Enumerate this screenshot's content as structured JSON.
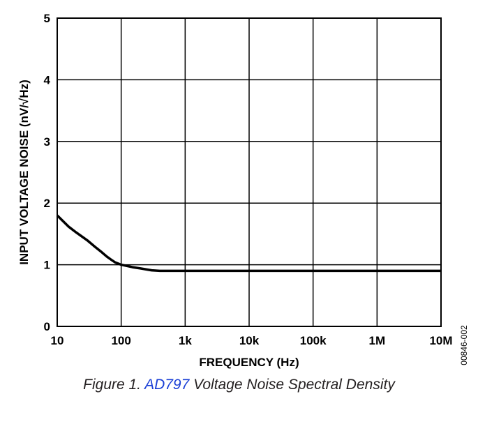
{
  "chart_data": {
    "type": "line",
    "xlabel": "FREQUENCY (Hz)",
    "ylabel": "INPUT VOLTAGE NOISE (nV/√Hz)",
    "xscale": "log",
    "xlim": [
      10,
      10000000
    ],
    "ylim": [
      0,
      5
    ],
    "grid": true,
    "x_tick_values": [
      10,
      100,
      1000,
      10000,
      100000,
      1000000,
      10000000
    ],
    "x_tick_labels": [
      "10",
      "100",
      "1k",
      "10k",
      "100k",
      "1M",
      "10M"
    ],
    "y_tick_values": [
      0,
      1,
      2,
      3,
      4,
      5
    ],
    "y_tick_labels": [
      "0",
      "1",
      "2",
      "3",
      "4",
      "5"
    ],
    "series": [
      {
        "x": [
          10,
          15,
          20,
          30,
          40,
          50,
          60,
          70,
          80,
          100,
          150,
          200,
          300,
          400,
          1000,
          10000,
          100000,
          1000000,
          10000000
        ],
        "y": [
          1.8,
          1.62,
          1.52,
          1.39,
          1.28,
          1.2,
          1.13,
          1.08,
          1.04,
          1.0,
          0.96,
          0.94,
          0.91,
          0.9,
          0.9,
          0.9,
          0.9,
          0.9,
          0.9
        ],
        "color": "#000000"
      }
    ],
    "figure_code": "00846-002"
  },
  "caption": {
    "prefix": "Figure 1. ",
    "link": "AD797",
    "suffix": " Voltage Noise Spectral Density"
  }
}
